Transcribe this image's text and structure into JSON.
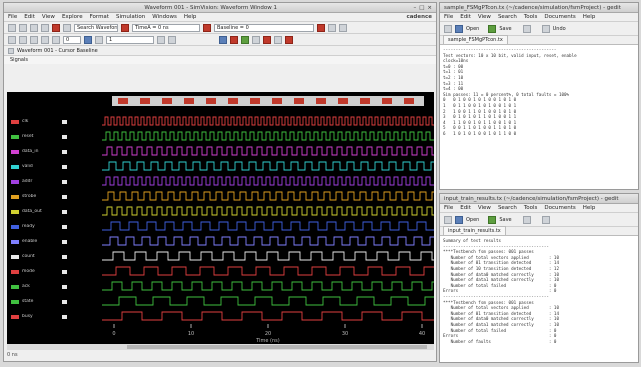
{
  "simvision": {
    "title": "Waveform 001 - SimVision: Waveform Window 1",
    "menu": [
      "File",
      "Edit",
      "View",
      "Explore",
      "Format",
      "Simulation",
      "Windows",
      "Help"
    ],
    "brand": "cadence",
    "search_field": "Search Waveform",
    "time_field": "0",
    "cursor_field": "TimeA = 0 ns",
    "baseline_field": "Baseline = 0",
    "zoom_field": "1",
    "panel_title": "Waveform 001 - Cursor Baseline",
    "signals_header": "Signals",
    "signals": [
      {
        "name": "clk",
        "color": "#e04040"
      },
      {
        "name": "reset",
        "color": "#40c040"
      },
      {
        "name": "data_in",
        "color": "#d040d0"
      },
      {
        "name": "valid",
        "color": "#30d0d0"
      },
      {
        "name": "addr",
        "color": "#a040e0"
      },
      {
        "name": "strobe",
        "color": "#e0a020"
      },
      {
        "name": "data_out",
        "color": "#d0d030"
      },
      {
        "name": "ready",
        "color": "#4060e0"
      },
      {
        "name": "enable",
        "color": "#8080ff"
      },
      {
        "name": "count",
        "color": "#e8e8e8"
      },
      {
        "name": "mode",
        "color": "#e04040"
      },
      {
        "name": "ack",
        "color": "#40c040"
      },
      {
        "name": "state",
        "color": "#40c040"
      },
      {
        "name": "busy",
        "color": "#e04040"
      }
    ],
    "time_ticks": [
      "0",
      "10",
      "20",
      "30",
      "40"
    ],
    "time_unit": "Time (ns)",
    "status": "0 ns",
    "status_bottom": "0 ns"
  },
  "gedit_top": {
    "title": "sample_FSMgPTcon.tx (~/cadence/simulation/fsmProject) - gedit",
    "menu": [
      "File",
      "Edit",
      "View",
      "Search",
      "Tools",
      "Documents",
      "Help"
    ],
    "open_label": "Open",
    "save_label": "Save",
    "undo_label": "Undo",
    "tab": "sample_FSMgPTcon.tx",
    "lines": [
      "---------------------------------------------",
      "Test vectors: 10 x 10 bit, valid input, reset, enable",
      "clock=10ns",
      "",
      "t=0 : 00",
      "t=1 : 01",
      "t=2 : 10",
      "t=3 : 11",
      "t=4 : 00",
      "Sim passes: 11 = 0 percent%, 0 total faults = 100%",
      "",
      "0   0 1 0 0 1 0 1 0 0 1 0 1 0",
      "1   0 1 1 0 0 1 0 1 0 0 1 0 1",
      "2   1 0 0 1 1 0 1 0 0 1 0 1 0",
      "3   0 1 0 1 0 1 1 0 1 0 0 1 1",
      "4   1 1 0 0 1 0 1 1 0 0 1 0 1",
      "5   0 0 1 1 0 1 0 0 1 1 0 1 0",
      "6   1 0 1 0 1 0 0 1 0 1 1 0 0"
    ]
  },
  "gedit_bottom": {
    "title": "input_train_results.tx (~/cadence/simulation/fsmProject) - gedit",
    "menu": [
      "File",
      "Edit",
      "View",
      "Search",
      "Tools",
      "Documents",
      "Help"
    ],
    "open_label": "Open",
    "save_label": "Save",
    "tab": "input_train_results.tx",
    "lines": [
      "Summary of test results",
      "------------------------------------------",
      "****Testbench fsm passes: 001 passes",
      "   Number of total vectors applied        : 10",
      "   Number of 01 transition detected       : 14",
      "   Number of 10 transition detected       : 12",
      "   Number of data0 matched correctly      : 10",
      "   Number of data1 matched correctly      : 10",
      "   Number of total failed                 : 0",
      "Errors                                    : 0",
      "------------------------------------------",
      "****Testbench fsm passes: 001 passes",
      "   Number of total vectors applied        : 10",
      "   Number of 01 transition detected       : 14",
      "   Number of data0 matched correctly      : 10",
      "   Number of data1 matched correctly      : 10",
      "   Number of total failed                 : 0",
      "Errors                                    : 0",
      "",
      "   Number of faults                       : 0"
    ]
  }
}
